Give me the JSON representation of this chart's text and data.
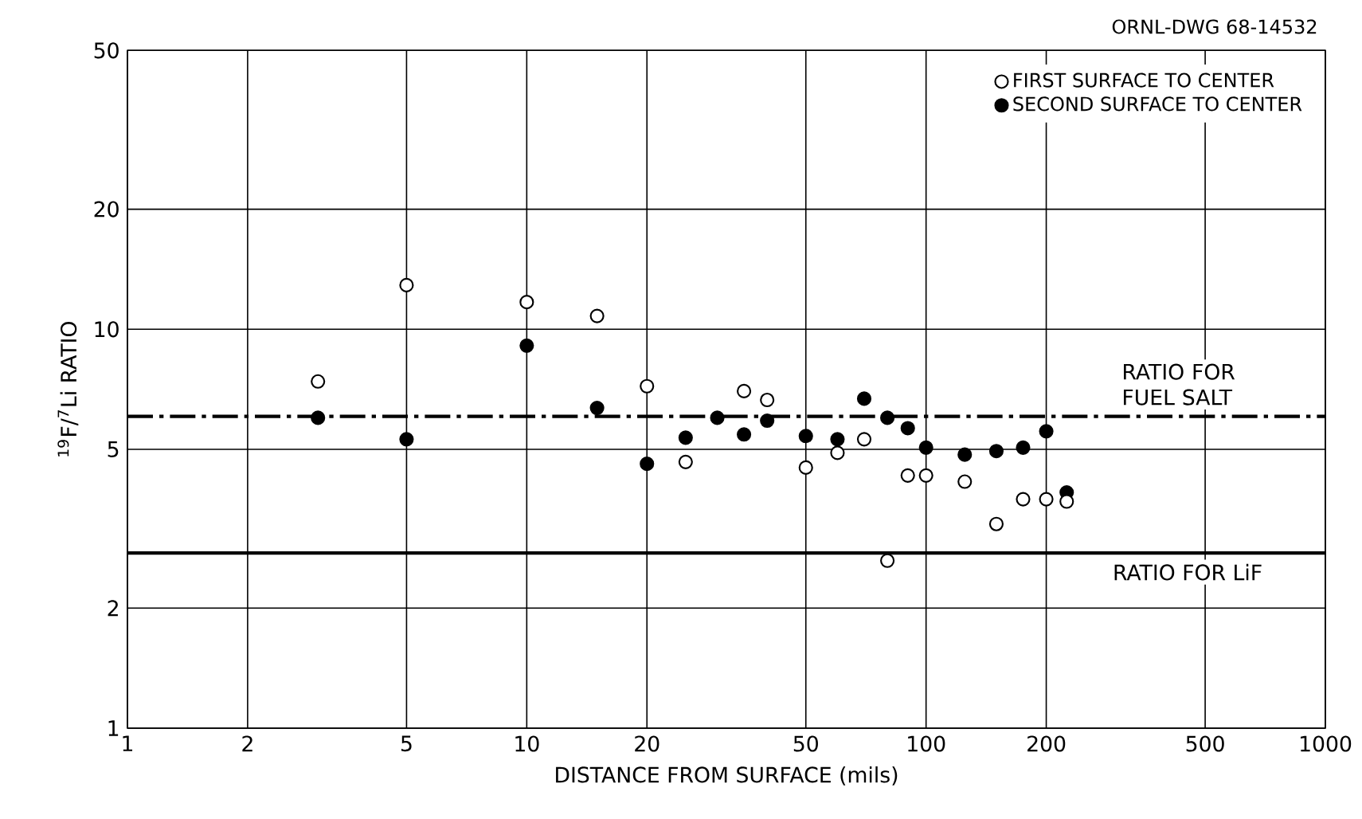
{
  "chart_data": {
    "type": "scatter",
    "xlabel": "DISTANCE FROM SURFACE (mils)",
    "ylabel": "$^{19}$F/$^{7}$Li RATIO",
    "log": "xy",
    "grid": true,
    "legend": "top right",
    "marker": "circle",
    "xlim": [
      1,
      1000
    ],
    "ylim": [
      1,
      50
    ],
    "xticks": [
      1,
      2,
      5,
      10,
      20,
      50,
      100,
      200,
      500,
      1000
    ],
    "yticks": [
      1,
      2,
      5,
      10,
      20,
      50
    ],
    "series": [
      {
        "name": "FIRST SURFACE TO CENTER",
        "color": "#ffffff",
        "x": [
          3,
          5,
          10,
          15,
          20,
          25,
          35,
          40,
          50,
          60,
          70,
          80,
          90,
          100,
          125,
          150,
          175,
          200,
          225
        ],
        "values": [
          7.4,
          12.9,
          11.7,
          10.8,
          7.2,
          4.65,
          7.0,
          6.65,
          4.5,
          4.9,
          5.3,
          2.63,
          4.3,
          4.3,
          4.15,
          3.25,
          3.75,
          3.75,
          3.7
        ]
      },
      {
        "name": "SECOND SURFACE TO CENTER",
        "color": "#000000",
        "x": [
          3,
          5,
          10,
          15,
          20,
          25,
          30,
          35,
          40,
          50,
          60,
          70,
          80,
          90,
          100,
          125,
          150,
          175,
          200,
          225
        ],
        "values": [
          6.0,
          5.3,
          9.1,
          6.35,
          4.6,
          5.35,
          6.0,
          5.45,
          5.9,
          5.4,
          5.3,
          6.7,
          6.0,
          5.65,
          5.05,
          4.85,
          4.95,
          5.05,
          5.55,
          3.9
        ]
      }
    ],
    "ref_lines": [
      {
        "axis": "y",
        "value": 6.05,
        "label": "RATIO FOR FUEL SALT",
        "color": "#000000",
        "line_style": "dashed"
      },
      {
        "axis": "y",
        "value": 2.75,
        "label": "RATIO FOR LiF",
        "color": "#000000",
        "line_style": "solid"
      }
    ],
    "annotations": [
      "ORNL-DWG 68-14532"
    ]
  }
}
